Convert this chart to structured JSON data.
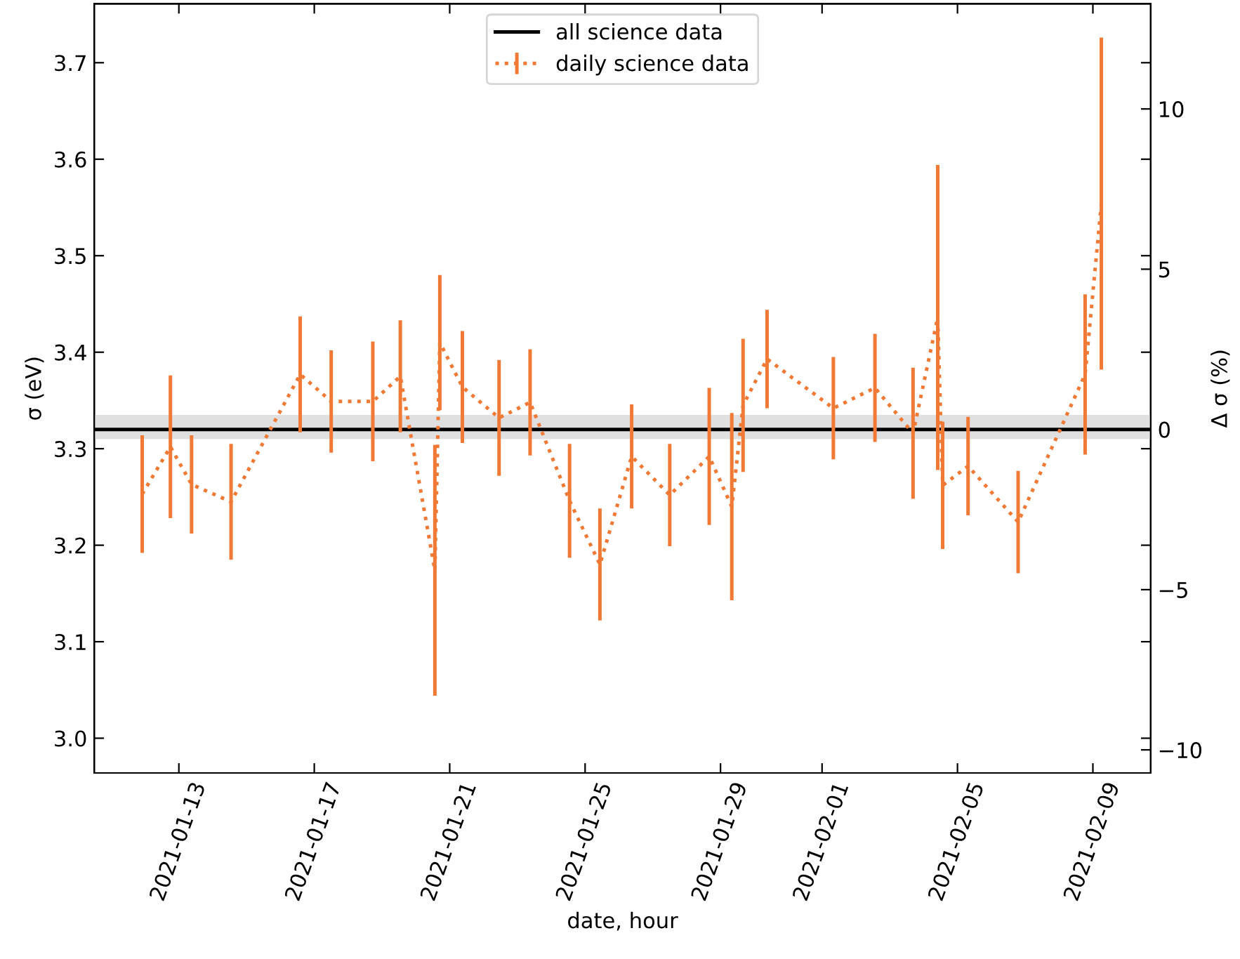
{
  "chart_data": {
    "type": "line",
    "xlabel": "date, hour",
    "ylabel": "σ (eV)",
    "y2label": "Δ σ (%)",
    "x": [
      "2021-01-11T22:00",
      "2021-01-12T18:00",
      "2021-01-13T09:00",
      "2021-01-14T13:00",
      "2021-01-16T14:00",
      "2021-01-17T12:00",
      "2021-01-18T17:30",
      "2021-01-19T13:00",
      "2021-01-20T13:30",
      "2021-01-20T17:00",
      "2021-01-21T09:00",
      "2021-01-22T11:00",
      "2021-01-23T09:00",
      "2021-01-24T13:00",
      "2021-01-25T10:30",
      "2021-01-26T09:00",
      "2021-01-27T12:00",
      "2021-01-28T16:00",
      "2021-01-29T08:00",
      "2021-01-29T16:00",
      "2021-01-30T09:00",
      "2021-02-01T08:00",
      "2021-02-02T13:30",
      "2021-02-03T16:30",
      "2021-02-04T10:00",
      "2021-02-04T13:30",
      "2021-02-05T07:30",
      "2021-02-06T19:00",
      "2021-02-08T18:30",
      "2021-02-09T06:00"
    ],
    "series": [
      {
        "name": "daily science data",
        "color": "#f07a35",
        "line_style": "dotted",
        "marker": "none",
        "values": [
          3.253,
          3.302,
          3.263,
          3.245,
          3.377,
          3.349,
          3.349,
          3.375,
          3.174,
          3.41,
          3.364,
          3.332,
          3.348,
          3.246,
          3.18,
          3.292,
          3.252,
          3.292,
          3.24,
          3.345,
          3.393,
          3.342,
          3.363,
          3.316,
          3.436,
          3.262,
          3.282,
          3.224,
          3.377,
          3.554
        ],
        "errors": [
          0.061,
          0.074,
          0.051,
          0.06,
          0.06,
          0.053,
          0.062,
          0.058,
          0.13,
          0.07,
          0.058,
          0.06,
          0.055,
          0.059,
          0.058,
          0.054,
          0.053,
          0.071,
          0.097,
          0.069,
          0.051,
          0.053,
          0.056,
          0.068,
          0.158,
          0.066,
          0.051,
          0.053,
          0.083,
          0.172
        ]
      }
    ],
    "ref_lines": [
      {
        "axis": "y",
        "value": 3.32,
        "label": "all science data",
        "color": "#000000"
      }
    ],
    "bands": [
      {
        "axis": "y",
        "from": 3.31,
        "to": 3.335,
        "color": "#e0e0e0"
      }
    ],
    "xlim": [
      "2021-01-10T12:00",
      "2021-02-10T17:00"
    ],
    "xticks": [
      "2021-01-13",
      "2021-01-17",
      "2021-01-21",
      "2021-01-25",
      "2021-01-29",
      "2021-02-01",
      "2021-02-05",
      "2021-02-09"
    ],
    "ylim": [
      2.964,
      3.761
    ],
    "yticks": [
      {
        "value": 3.0,
        "label": "3.0"
      },
      3.1,
      3.2,
      3.3,
      3.4,
      3.5,
      3.6,
      3.7
    ],
    "y2lim": [
      -10.72,
      13.28
    ],
    "y2ticks": [
      -10,
      -5,
      0,
      5,
      10
    ],
    "grid": false,
    "legend": "top"
  }
}
